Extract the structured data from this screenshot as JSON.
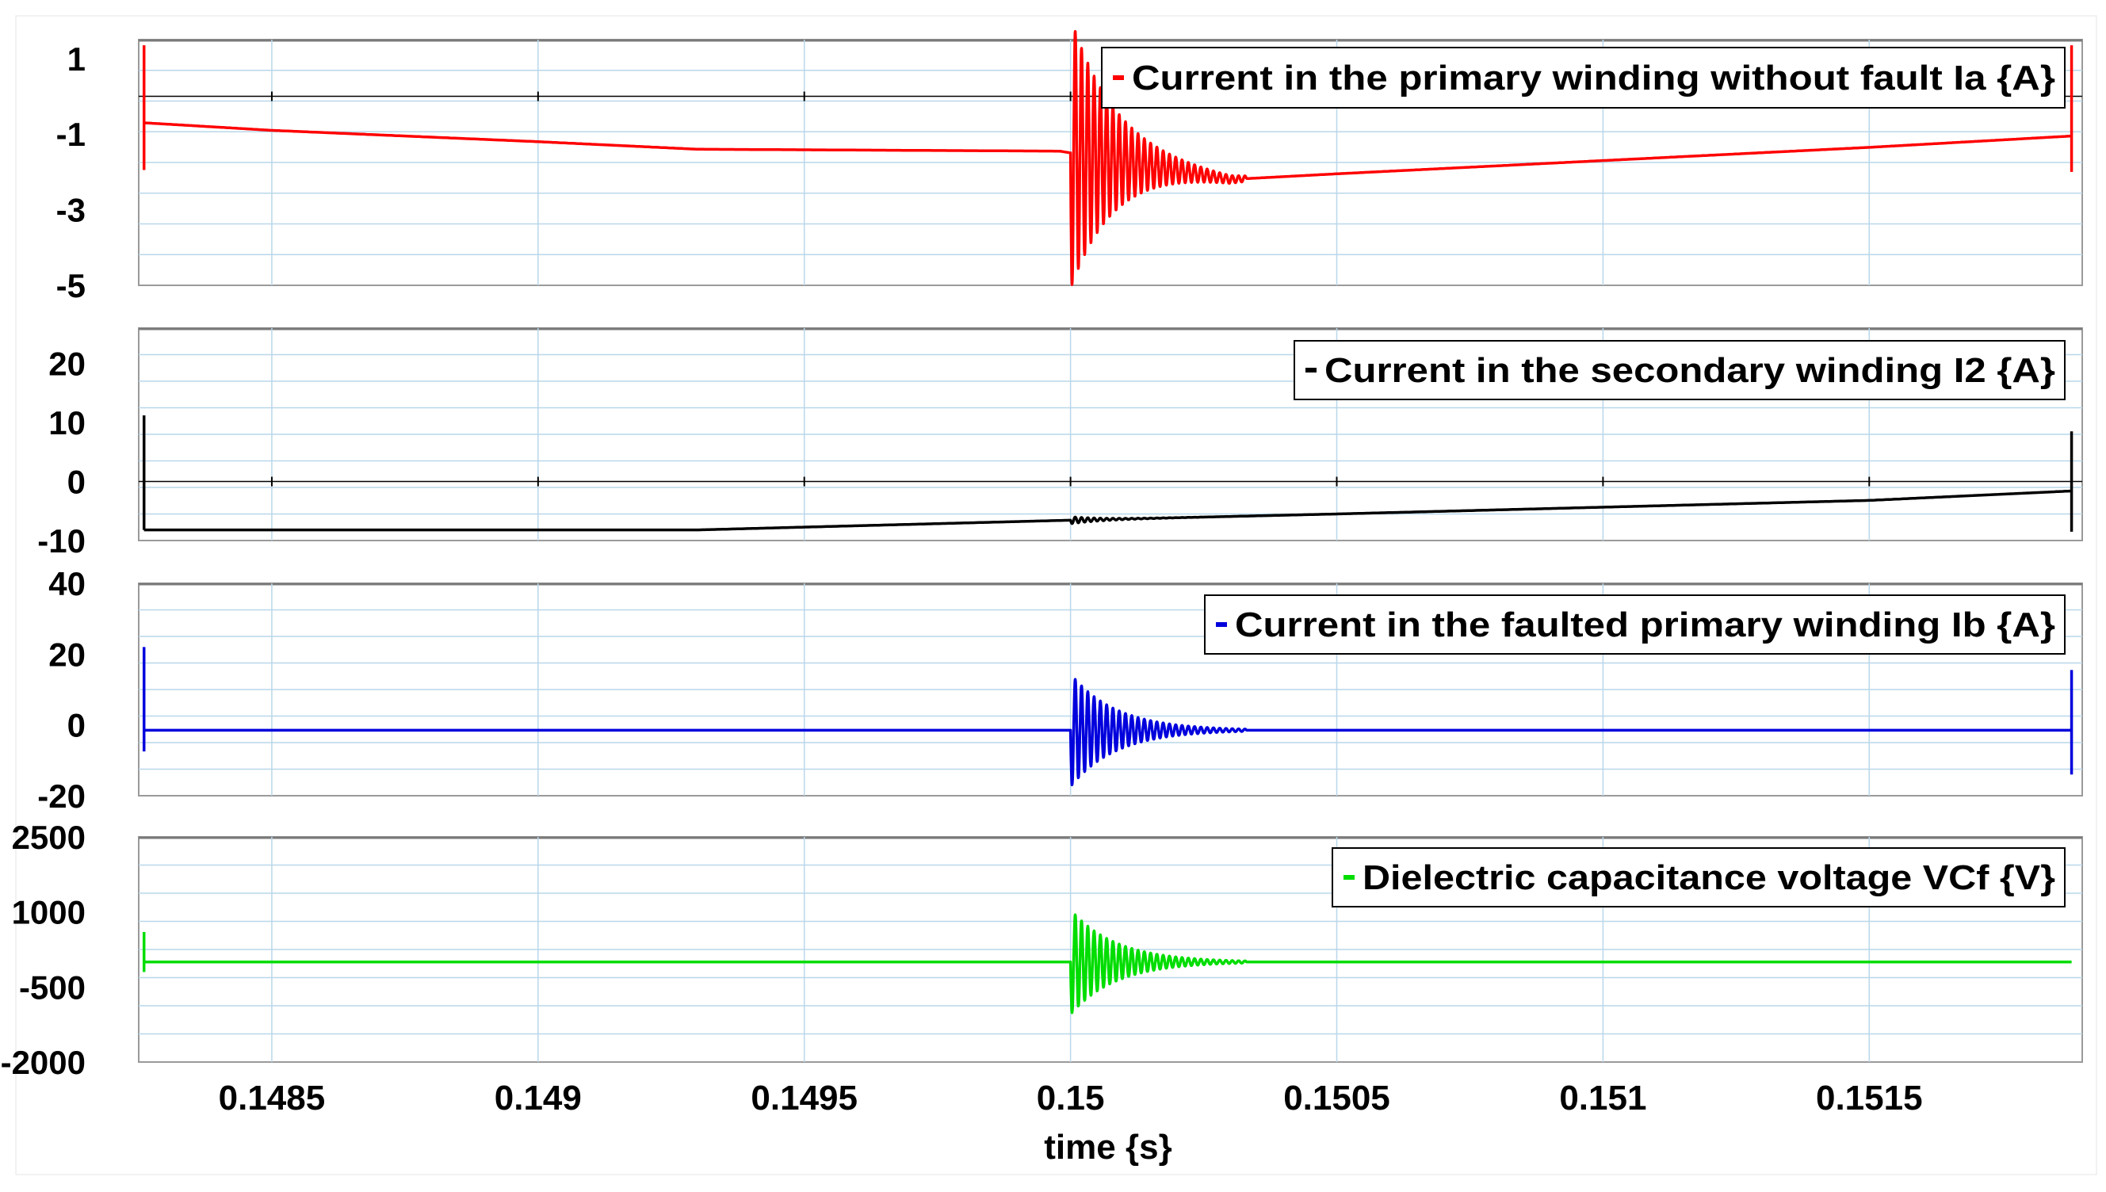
{
  "chart_data": {
    "type": "line",
    "xlabel": "time {s}",
    "xlim": [
      0.14825,
      0.1519
    ],
    "x_ticks": [
      0.1485,
      0.149,
      0.1495,
      0.15,
      0.1505,
      0.151,
      0.1515
    ],
    "x_tick_labels": [
      "0.1485",
      "0.149",
      "0.1495",
      "0.15",
      "0.1505",
      "0.151",
      "0.1515"
    ],
    "grid": true,
    "panels": [
      {
        "legend": "Current in the primary winding without fault Ia {A}",
        "legend_placement": "top-right",
        "color": "#ff0000",
        "ylim": [
          -5,
          1.5
        ],
        "y_ticks": [
          1,
          -1,
          -3,
          -5
        ],
        "y_tick_labels": [
          "1",
          "-1",
          "-3",
          "-5"
        ],
        "x": [
          0.14826,
          0.1485,
          0.149,
          0.1493,
          0.14998,
          0.1503,
          0.1505,
          0.151,
          0.1515,
          0.15188
        ],
        "y": [
          -0.7,
          -0.9,
          -1.2,
          -1.4,
          -1.45,
          -2.2,
          -2.05,
          -1.7,
          -1.35,
          -1.05
        ],
        "transient": {
          "t0": 0.15,
          "amplitude": 3.6,
          "period": 1.18e-05,
          "tau": 8.5e-05,
          "baseline": -2.2,
          "end": 0.15033
        },
        "edge_spikes": [
          {
            "x": 0.14826,
            "from": -1.95,
            "to": 1.35
          },
          {
            "x": 0.15188,
            "from": -2.0,
            "to": 1.35
          }
        ]
      },
      {
        "legend": "Current in the secondary winding I2 {A}",
        "legend_placement": "top-right",
        "color": "#000000",
        "ylim": [
          -10,
          26
        ],
        "y_ticks": [
          20,
          10,
          0,
          -10
        ],
        "y_tick_labels": [
          "20",
          "10",
          "0",
          "-10"
        ],
        "x": [
          0.14826,
          0.1493,
          0.14998,
          0.1505,
          0.1515,
          0.15188
        ],
        "y": [
          -8.2,
          -8.2,
          -6.6,
          -5.5,
          -3.2,
          -1.6
        ],
        "transient": {
          "t0": 0.15,
          "amplitude": 0.6,
          "period": 1.18e-05,
          "tau": 6e-05,
          "baseline": -6.6,
          "end": 0.15025
        },
        "edge_spikes": [
          {
            "x": 0.14826,
            "from": -8.2,
            "to": 11.2
          },
          {
            "x": 0.15188,
            "from": -8.5,
            "to": 8.5
          }
        ]
      },
      {
        "legend": "Current in the faulted primary winding Ib {A}",
        "legend_placement": "top-right",
        "color": "#0000dd",
        "ylim": [
          -20,
          40
        ],
        "y_ticks": [
          40,
          20,
          0,
          -20
        ],
        "y_tick_labels": [
          "40",
          "20",
          "0",
          "-20"
        ],
        "x": [
          0.14826,
          0.15188
        ],
        "y": [
          -1.5,
          -1.5
        ],
        "transient": {
          "t0": 0.15,
          "amplitude": 16,
          "period": 1.18e-05,
          "tau": 8.5e-05,
          "baseline": -1.5,
          "end": 0.15033
        },
        "edge_spikes": [
          {
            "x": 0.14826,
            "from": -7.5,
            "to": 22
          },
          {
            "x": 0.15188,
            "from": -14,
            "to": 15.5
          }
        ]
      },
      {
        "legend": "Dielectric capacitance voltage VCf {V}",
        "legend_placement": "top-right",
        "color": "#00dd00",
        "ylim": [
          -2000,
          2500
        ],
        "y_ticks": [
          2500,
          1000,
          -500,
          -2000
        ],
        "y_tick_labels": [
          "2500",
          "1000",
          "-500",
          "-2000"
        ],
        "x": [
          0.14826,
          0.15188
        ],
        "y": [
          0,
          0
        ],
        "transient": {
          "t0": 0.15,
          "amplitude": 1050,
          "period": 1.18e-05,
          "tau": 8.5e-05,
          "baseline": 0,
          "end": 0.15033
        },
        "edge_spikes": [
          {
            "x": 0.14826,
            "from": -200,
            "to": 600
          }
        ]
      }
    ]
  }
}
